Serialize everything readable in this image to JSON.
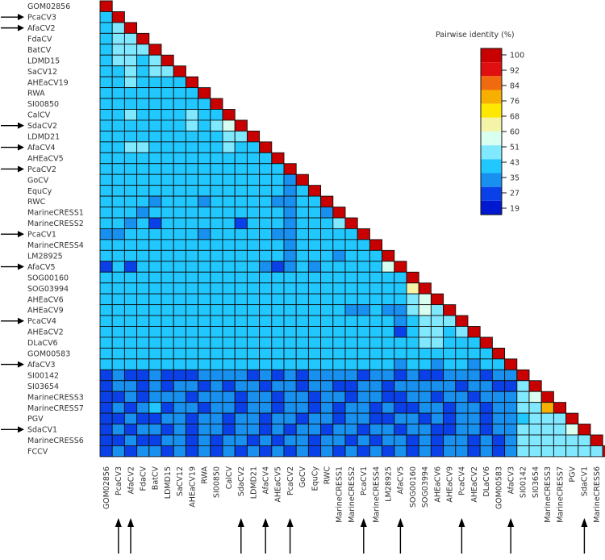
{
  "chart_data": {
    "type": "heatmap",
    "title": "",
    "legend": {
      "title": "Pairwise identity (%)",
      "ticks": [
        100,
        92,
        84,
        76,
        68,
        60,
        51,
        43,
        35,
        27,
        19
      ],
      "colors": [
        "#c80000",
        "#e01010",
        "#f06a10",
        "#f8b000",
        "#ffe800",
        "#f4f4a8",
        "#d8fff0",
        "#80e8ff",
        "#20c8ff",
        "#1890f0",
        "#0a40e8",
        "#0018d0"
      ]
    },
    "labels": [
      "GOM02856",
      "PcaCV3",
      "AfaCV2",
      "FdaCV",
      "BatCV",
      "LDMD15",
      "SaCV12",
      "AHEaCV19",
      "RWA",
      "SI00850",
      "CalCV",
      "SdaCV2",
      "LDMD21",
      "AfaCV4",
      "AHEaCV5",
      "PcaCV2",
      "GoCV",
      "EquCy",
      "RWC",
      "MarineCRESS1",
      "MarineCRESS2",
      "PcaCV1",
      "MarineCRESS4",
      "LM28925",
      "AfaCV5",
      "SOG00160",
      "SOG03994",
      "AHEaCV6",
      "AHEaCV9",
      "PcaCV4",
      "AHEaCV2",
      "DLaCV6",
      "GOM00583",
      "AfaCV3",
      "SI00142",
      "SI03654",
      "MarineCRESS3",
      "MarineCRESS7",
      "PGV",
      "SdaCV1",
      "MarineCRESS6",
      "FCCV"
    ],
    "highlighted": [
      "PcaCV3",
      "AfaCV2",
      "SdaCV2",
      "AfaCV4",
      "PcaCV2",
      "PcaCV1",
      "AfaCV5",
      "PcaCV4",
      "AfaCV3",
      "SdaCV1"
    ],
    "matrix": [
      [
        100
      ],
      [
        35,
        100
      ],
      [
        35,
        43,
        100
      ],
      [
        35,
        43,
        43,
        100
      ],
      [
        35,
        43,
        43,
        43,
        100
      ],
      [
        35,
        43,
        43,
        35,
        43,
        100
      ],
      [
        35,
        35,
        43,
        35,
        43,
        43,
        100
      ],
      [
        35,
        35,
        43,
        35,
        35,
        35,
        35,
        100
      ],
      [
        35,
        35,
        35,
        35,
        35,
        35,
        35,
        35,
        100
      ],
      [
        35,
        35,
        35,
        35,
        35,
        35,
        35,
        35,
        35,
        100
      ],
      [
        35,
        35,
        43,
        35,
        35,
        35,
        35,
        43,
        35,
        35,
        100
      ],
      [
        35,
        35,
        35,
        35,
        35,
        35,
        35,
        43,
        35,
        43,
        51,
        100
      ],
      [
        35,
        35,
        35,
        35,
        35,
        35,
        35,
        35,
        35,
        35,
        43,
        43,
        100
      ],
      [
        35,
        35,
        43,
        43,
        35,
        35,
        35,
        35,
        35,
        35,
        43,
        35,
        35,
        100
      ],
      [
        35,
        35,
        35,
        35,
        35,
        35,
        35,
        35,
        35,
        35,
        35,
        35,
        35,
        35,
        100
      ],
      [
        35,
        35,
        35,
        35,
        35,
        35,
        35,
        35,
        35,
        35,
        35,
        35,
        35,
        35,
        35,
        100
      ],
      [
        35,
        35,
        35,
        35,
        35,
        35,
        35,
        35,
        35,
        35,
        35,
        35,
        35,
        35,
        35,
        27,
        100
      ],
      [
        35,
        35,
        35,
        35,
        35,
        35,
        35,
        35,
        35,
        35,
        35,
        35,
        35,
        35,
        35,
        27,
        35,
        100
      ],
      [
        35,
        35,
        35,
        35,
        27,
        35,
        35,
        35,
        27,
        35,
        35,
        35,
        35,
        35,
        27,
        27,
        35,
        35,
        100
      ],
      [
        35,
        35,
        35,
        27,
        35,
        35,
        35,
        35,
        35,
        35,
        35,
        35,
        35,
        35,
        35,
        27,
        35,
        35,
        27,
        100
      ],
      [
        35,
        35,
        27,
        35,
        19,
        35,
        35,
        35,
        35,
        35,
        35,
        19,
        35,
        35,
        35,
        27,
        35,
        35,
        35,
        43,
        100
      ],
      [
        27,
        27,
        35,
        35,
        35,
        35,
        35,
        35,
        27,
        35,
        35,
        35,
        35,
        35,
        27,
        27,
        35,
        35,
        35,
        35,
        35,
        100
      ],
      [
        35,
        35,
        35,
        35,
        35,
        35,
        35,
        35,
        35,
        35,
        35,
        35,
        35,
        35,
        35,
        27,
        35,
        35,
        35,
        35,
        35,
        35,
        100
      ],
      [
        35,
        35,
        35,
        35,
        35,
        35,
        35,
        35,
        35,
        35,
        35,
        35,
        35,
        35,
        35,
        27,
        35,
        35,
        35,
        27,
        35,
        35,
        35,
        100
      ],
      [
        19,
        35,
        19,
        35,
        35,
        35,
        35,
        35,
        35,
        35,
        35,
        35,
        35,
        27,
        19,
        27,
        35,
        27,
        35,
        35,
        35,
        35,
        35,
        51,
        100
      ],
      [
        35,
        35,
        35,
        35,
        35,
        35,
        35,
        35,
        35,
        35,
        35,
        35,
        35,
        35,
        35,
        35,
        35,
        35,
        35,
        35,
        35,
        35,
        35,
        35,
        35,
        100
      ],
      [
        35,
        35,
        35,
        35,
        35,
        35,
        35,
        35,
        35,
        35,
        35,
        35,
        35,
        35,
        35,
        35,
        35,
        35,
        35,
        35,
        35,
        35,
        35,
        35,
        35,
        60,
        100
      ],
      [
        35,
        35,
        35,
        35,
        35,
        35,
        35,
        35,
        35,
        35,
        35,
        35,
        35,
        35,
        35,
        35,
        35,
        35,
        35,
        35,
        35,
        35,
        35,
        35,
        35,
        43,
        51,
        100
      ],
      [
        35,
        35,
        35,
        35,
        35,
        35,
        35,
        35,
        35,
        35,
        35,
        35,
        35,
        35,
        35,
        35,
        35,
        35,
        35,
        35,
        27,
        27,
        35,
        27,
        27,
        43,
        51,
        43,
        100
      ],
      [
        35,
        35,
        35,
        35,
        35,
        35,
        35,
        35,
        35,
        35,
        35,
        35,
        35,
        35,
        35,
        35,
        35,
        35,
        35,
        35,
        35,
        35,
        35,
        35,
        27,
        35,
        43,
        43,
        43,
        100
      ],
      [
        35,
        35,
        35,
        35,
        35,
        35,
        35,
        35,
        35,
        35,
        35,
        35,
        35,
        35,
        35,
        35,
        35,
        35,
        35,
        35,
        35,
        35,
        35,
        35,
        19,
        35,
        43,
        43,
        35,
        43,
        100
      ],
      [
        35,
        35,
        35,
        35,
        35,
        35,
        35,
        35,
        35,
        35,
        35,
        35,
        35,
        35,
        35,
        35,
        35,
        35,
        35,
        35,
        35,
        35,
        35,
        35,
        35,
        35,
        43,
        43,
        35,
        35,
        35,
        100
      ],
      [
        35,
        35,
        35,
        35,
        35,
        35,
        35,
        35,
        35,
        35,
        35,
        35,
        35,
        35,
        35,
        35,
        35,
        35,
        35,
        35,
        35,
        35,
        35,
        35,
        35,
        35,
        35,
        35,
        35,
        35,
        35,
        35,
        100
      ],
      [
        35,
        35,
        35,
        35,
        35,
        35,
        35,
        35,
        35,
        35,
        35,
        35,
        35,
        35,
        35,
        35,
        35,
        35,
        35,
        35,
        35,
        35,
        35,
        35,
        27,
        35,
        35,
        27,
        35,
        35,
        27,
        35,
        35,
        100
      ],
      [
        19,
        27,
        19,
        19,
        27,
        19,
        19,
        19,
        27,
        27,
        27,
        27,
        19,
        27,
        19,
        27,
        19,
        27,
        27,
        27,
        27,
        19,
        27,
        27,
        19,
        27,
        19,
        19,
        27,
        27,
        27,
        19,
        27,
        27,
        100
      ],
      [
        19,
        27,
        27,
        19,
        27,
        19,
        27,
        27,
        19,
        27,
        19,
        27,
        27,
        19,
        27,
        27,
        19,
        27,
        27,
        19,
        19,
        27,
        27,
        19,
        27,
        27,
        27,
        27,
        27,
        19,
        27,
        27,
        19,
        19,
        43,
        100
      ],
      [
        19,
        19,
        27,
        19,
        27,
        27,
        27,
        19,
        27,
        27,
        27,
        19,
        27,
        27,
        19,
        27,
        27,
        19,
        27,
        27,
        19,
        27,
        27,
        19,
        19,
        27,
        27,
        19,
        27,
        27,
        19,
        27,
        27,
        27,
        43,
        51,
        100
      ],
      [
        19,
        27,
        19,
        27,
        35,
        19,
        27,
        27,
        19,
        27,
        27,
        19,
        27,
        27,
        19,
        27,
        27,
        19,
        27,
        19,
        27,
        27,
        19,
        27,
        19,
        19,
        27,
        27,
        19,
        27,
        27,
        19,
        27,
        27,
        43,
        43,
        76,
        100
      ],
      [
        19,
        19,
        27,
        19,
        19,
        27,
        27,
        19,
        27,
        27,
        19,
        27,
        27,
        19,
        27,
        27,
        19,
        27,
        27,
        19,
        27,
        27,
        19,
        19,
        27,
        27,
        19,
        27,
        19,
        27,
        27,
        19,
        27,
        27,
        35,
        43,
        43,
        43,
        100
      ],
      [
        19,
        27,
        19,
        27,
        27,
        19,
        27,
        19,
        27,
        27,
        19,
        27,
        27,
        19,
        27,
        19,
        27,
        27,
        19,
        27,
        27,
        19,
        27,
        27,
        19,
        27,
        27,
        19,
        19,
        27,
        27,
        19,
        27,
        27,
        43,
        43,
        43,
        43,
        51,
        100
      ],
      [
        19,
        19,
        27,
        19,
        19,
        27,
        27,
        19,
        27,
        19,
        27,
        27,
        19,
        27,
        19,
        27,
        27,
        19,
        27,
        27,
        19,
        27,
        19,
        27,
        27,
        19,
        27,
        19,
        27,
        27,
        19,
        27,
        19,
        27,
        43,
        43,
        43,
        43,
        43,
        43,
        100
      ],
      [
        19,
        27,
        19,
        27,
        27,
        19,
        27,
        19,
        27,
        19,
        27,
        19,
        27,
        19,
        27,
        19,
        27,
        19,
        27,
        19,
        27,
        19,
        27,
        19,
        27,
        19,
        27,
        19,
        27,
        27,
        19,
        27,
        19,
        27,
        43,
        43,
        43,
        43,
        43,
        43,
        43,
        100
      ]
    ]
  }
}
